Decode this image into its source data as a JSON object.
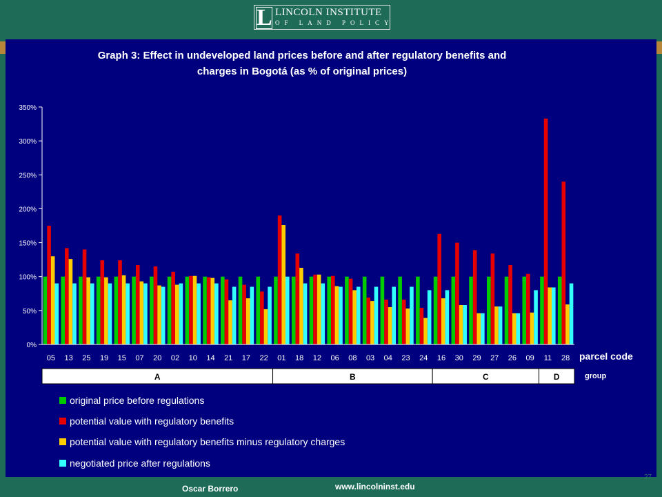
{
  "header": {
    "logo_letter": "L",
    "logo_line1": "LINCOLN INSTITUTE",
    "logo_line2": "OF LAND POLICY"
  },
  "footer": {
    "author": "Oscar Borrero",
    "website": "www.lincolninst.edu",
    "slide_number": "27"
  },
  "colors": {
    "panel_bg": "#00007f",
    "brand_green": "#1e6b58",
    "brand_gold": "#b8863a",
    "series": [
      "#00cc00",
      "#e60000",
      "#ffcc00",
      "#33ffff"
    ]
  },
  "chart_data": {
    "type": "bar",
    "title_lines": [
      "Graph 3: Effect in undeveloped land prices before and after regulatory benefits and",
      "charges in Bogotá (as % of original prices)"
    ],
    "xlabel": "parcel code",
    "group_label": "group",
    "y_ticks": [
      "0%",
      "50%",
      "100%",
      "150%",
      "200%",
      "250%",
      "300%",
      "350%"
    ],
    "ylim": [
      0,
      350
    ],
    "categories": [
      "05",
      "13",
      "25",
      "19",
      "15",
      "07",
      "20",
      "02",
      "10",
      "14",
      "21",
      "17",
      "22",
      "01",
      "18",
      "12",
      "06",
      "08",
      "03",
      "04",
      "23",
      "24",
      "16",
      "30",
      "29",
      "27",
      "26",
      "09",
      "11",
      "28"
    ],
    "groups": [
      {
        "name": "A",
        "start": 0,
        "end": 12
      },
      {
        "name": "B",
        "start": 13,
        "end": 21
      },
      {
        "name": "C",
        "start": 22,
        "end": 27
      },
      {
        "name": "D",
        "start": 28,
        "end": 29
      }
    ],
    "series": [
      {
        "name": "original price before regulations",
        "values": [
          100,
          100,
          100,
          100,
          100,
          100,
          100,
          100,
          100,
          100,
          100,
          100,
          100,
          100,
          100,
          100,
          100,
          100,
          100,
          100,
          100,
          100,
          100,
          100,
          100,
          100,
          100,
          100,
          100,
          100
        ]
      },
      {
        "name": "potential value with regulatory benefits",
        "values": [
          175,
          142,
          140,
          124,
          124,
          117,
          115,
          107,
          101,
          99,
          96,
          88,
          78,
          190,
          134,
          103,
          101,
          97,
          69,
          66,
          66,
          54,
          163,
          150,
          139,
          134,
          117,
          104,
          333,
          240
        ]
      },
      {
        "name": "potential value with regulatory benefits minus regulatory charges",
        "values": [
          130,
          126,
          99,
          99,
          102,
          93,
          87,
          88,
          101,
          98,
          65,
          68,
          52,
          176,
          113,
          103,
          86,
          80,
          64,
          55,
          53,
          39,
          68,
          58,
          46,
          56,
          46,
          47,
          84,
          59
        ]
      },
      {
        "name": "negotiated price after regulations",
        "values": [
          90,
          90,
          90,
          90,
          90,
          90,
          85,
          90,
          90,
          90,
          85,
          85,
          85,
          100,
          90,
          90,
          85,
          85,
          85,
          85,
          85,
          80,
          80,
          58,
          46,
          56,
          46,
          80,
          84,
          90
        ]
      }
    ],
    "grid": false,
    "legend_position": "bottom"
  }
}
